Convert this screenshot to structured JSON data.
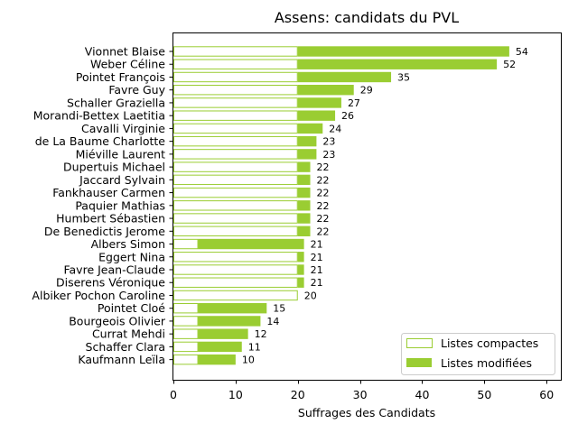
{
  "chart_data": {
    "type": "bar",
    "orientation": "horizontal",
    "stacked": true,
    "title": "Assens: candidats du PVL",
    "xlabel": "Suffrages des Candidats",
    "ylabel": "",
    "xlim": [
      0,
      62
    ],
    "xticks": [
      0,
      10,
      20,
      30,
      40,
      50,
      60
    ],
    "categories": [
      "Vionnet Blaise",
      "Weber Céline",
      "Pointet François",
      "Favre Guy",
      "Schaller Graziella",
      "Morandi-Bettex Laetitia",
      "Cavalli Virginie",
      "de La Baume Charlotte",
      "Miéville Laurent",
      "Dupertuis Michael",
      "Jaccard Sylvain",
      "Fankhauser Carmen",
      "Paquier Mathias",
      "Humbert Sébastien",
      "De Benedictis Jerome",
      "Albers Simon",
      "Eggert Nina",
      "Favre Jean-Claude",
      "Diserens Véronique",
      "Albiker Pochon Caroline",
      "Pointet Cloé",
      "Bourgeois Olivier",
      "Currat Mehdi",
      "Schaffer Clara",
      "Kaufmann Leïla"
    ],
    "series": [
      {
        "name": "Listes compactes",
        "values": [
          20,
          20,
          20,
          20,
          20,
          20,
          20,
          20,
          20,
          20,
          20,
          20,
          20,
          20,
          20,
          4,
          20,
          20,
          20,
          20,
          4,
          4,
          4,
          4,
          4
        ]
      },
      {
        "name": "Listes modifiées",
        "values": [
          34,
          32,
          15,
          9,
          7,
          6,
          4,
          3,
          3,
          2,
          2,
          2,
          2,
          2,
          2,
          17,
          1,
          1,
          1,
          0,
          11,
          10,
          8,
          7,
          6
        ]
      }
    ],
    "totals": [
      54,
      52,
      35,
      29,
      27,
      26,
      24,
      23,
      23,
      22,
      22,
      22,
      22,
      22,
      22,
      21,
      21,
      21,
      21,
      20,
      15,
      14,
      12,
      11,
      10
    ],
    "colors": {
      "compact_edge": "#9acd32",
      "modified_fill": "#9acd32",
      "compact_fill": "#ffffff"
    },
    "legend": "bottom-right",
    "grid": false
  }
}
